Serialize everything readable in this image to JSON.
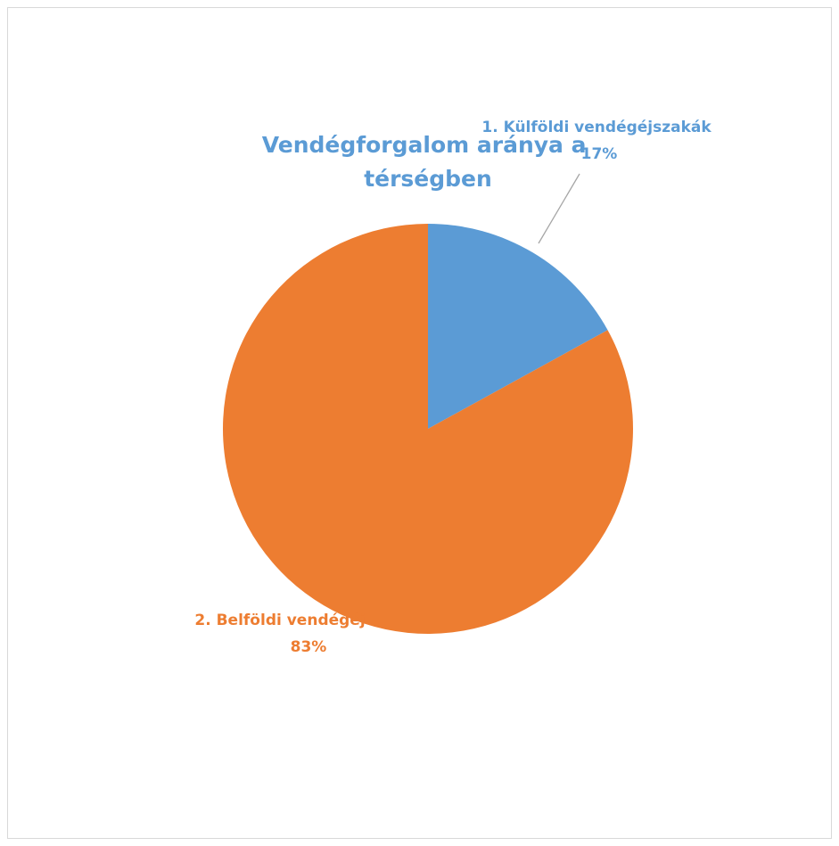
{
  "chart_data": {
    "type": "pie",
    "title": "Vendégforgalom aránya a térségben",
    "title_lines": [
      "Vendégforgalom aránya a",
      "térségben"
    ],
    "categories": [
      "1. Külföldi vendégéjszakák",
      "2. Belföldi vendégéj"
    ],
    "values": [
      17,
      83
    ],
    "value_labels": [
      "17%",
      "83%"
    ],
    "colors": [
      "#5b9bd5",
      "#ed7d31"
    ],
    "legend": "none",
    "start_angle_deg": 0,
    "direction": "clockwise"
  },
  "colors": {
    "title": "#5b9bd5",
    "border": "#d9d9d9",
    "leader_line": "#a6a6a6"
  }
}
